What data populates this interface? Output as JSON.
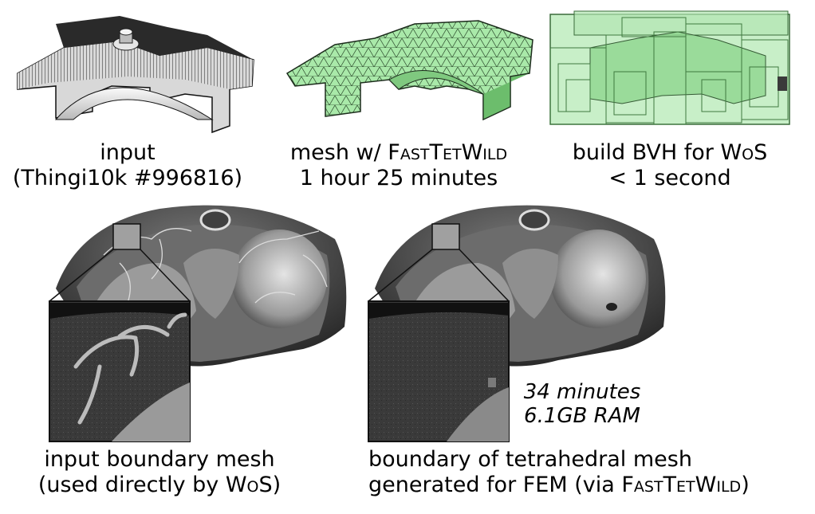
{
  "top_row": {
    "input": {
      "line1": "input",
      "line2": "(Thingi10k #996816)"
    },
    "mesh": {
      "prefix": "mesh w/ ",
      "tool": "FastTetWild",
      "time": "1 hour 25 minutes"
    },
    "bvh": {
      "prefix": "build BVH for ",
      "method": "WoS",
      "time": "< 1 second"
    }
  },
  "bottom_row": {
    "left": {
      "line1": "input boundary mesh",
      "line2_prefix": "(used directly by ",
      "method": "WoS",
      "line2_suffix": ")"
    },
    "right": {
      "line1": "boundary of tetrahedral mesh",
      "line2_prefix": "generated for FEM (via ",
      "tool": "FastTetWild",
      "line2_suffix": ")"
    },
    "timing": {
      "line1": "34 minutes",
      "line2": "6.1GB RAM"
    }
  },
  "colors": {
    "mesh_green": "#a6e8a6",
    "bvh_green": "#8fdc8f",
    "render_gray": "#8a8a8a"
  }
}
